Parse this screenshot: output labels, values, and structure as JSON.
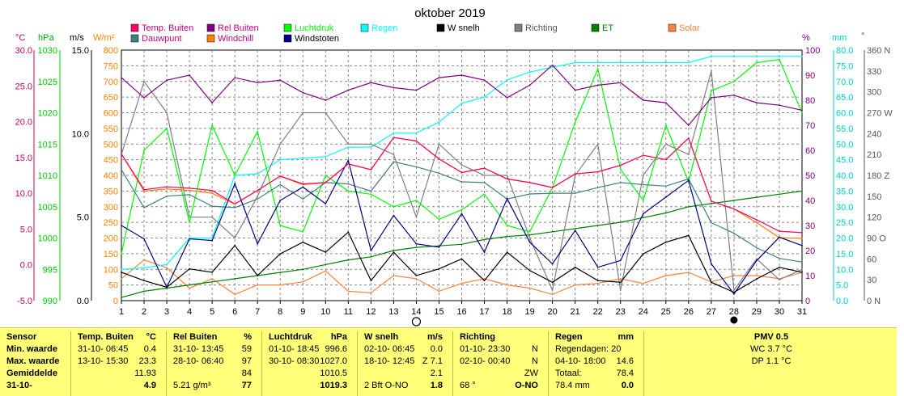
{
  "title": "oktober 2019",
  "legend": [
    {
      "label": "Temp. Buiten",
      "color": "#ff0066"
    },
    {
      "label": "Rel Buiten",
      "color": "#800080"
    },
    {
      "label": "Luchtdruk",
      "color": "#00ff00"
    },
    {
      "label": "Regen",
      "color": "#00ffff"
    },
    {
      "label": "W snelh",
      "color": "#000000"
    },
    {
      "label": "Richting",
      "color": "#808080"
    },
    {
      "label": "ET",
      "color": "#008000"
    },
    {
      "label": "Solar",
      "color": "#ff8040"
    },
    {
      "label": "Dauwpunt",
      "color": "#408080"
    },
    {
      "label": "Windchill",
      "color": "#ff8000"
    },
    {
      "label": "Windstoten",
      "color": "#000080"
    }
  ],
  "axis_units": {
    "temp": "°C",
    "hpa": "hPa",
    "ms": "m/s",
    "wm2": "W/m²",
    "pct": "%",
    "mm": "mm",
    "deg": "°"
  },
  "axis_ticks": {
    "temp": [
      "30.0",
      "25.0",
      "20.0",
      "15.0",
      "10.0",
      "5.0",
      "0.0",
      "-5.0"
    ],
    "hpa": [
      "1030",
      "1025",
      "1020",
      "1015",
      "1010",
      "1005",
      "1000",
      "995",
      "990"
    ],
    "ms": [
      "15.0",
      "10.0",
      "5.0",
      "0.0"
    ],
    "wm2": [
      "800",
      "750",
      "700",
      "650",
      "600",
      "550",
      "500",
      "450",
      "400",
      "350",
      "300",
      "250",
      "200",
      "150",
      "100",
      "50",
      "0"
    ],
    "pct": [
      "100",
      "90",
      "80",
      "70",
      "60",
      "50",
      "40",
      "30",
      "20",
      "10",
      "0"
    ],
    "mm": [
      "80.0",
      "75.0",
      "70.0",
      "65.0",
      "60.0",
      "55.0",
      "50.0",
      "45.0",
      "40.0",
      "35.0",
      "30.0",
      "25.0",
      "20.0",
      "15.0",
      "10.0",
      "5.0",
      "0.0"
    ],
    "dir": [
      "360 N",
      "330",
      "300",
      "270 W",
      "240",
      "210",
      "180 Z",
      "150",
      "120",
      "90 O",
      "60",
      "30",
      "0 N"
    ]
  },
  "chart_data": {
    "type": "line",
    "title": "oktober 2019",
    "x": [
      1,
      2,
      3,
      4,
      5,
      6,
      7,
      8,
      9,
      10,
      11,
      12,
      13,
      14,
      15,
      16,
      17,
      18,
      19,
      20,
      21,
      22,
      23,
      24,
      25,
      26,
      27,
      28,
      29,
      30,
      31
    ],
    "markers": [
      {
        "x": 14,
        "symbol": "open-circle"
      },
      {
        "x": 28,
        "symbol": "filled-circle"
      }
    ],
    "grid": true,
    "series": [
      {
        "name": "Temp. Buiten",
        "axis": "temp",
        "color": "#ff0066",
        "values": [
          15.5,
          10.5,
          10.9,
          10.7,
          10.4,
          8.5,
          10.4,
          12.4,
          11.3,
          11.5,
          14.1,
          13.3,
          17.8,
          17.3,
          14.8,
          12.9,
          13.5,
          12.0,
          11.5,
          10.8,
          12.7,
          13.0,
          13.9,
          15.3,
          14.7,
          17.7,
          8.9,
          7.8,
          6.3,
          4.7,
          4.5
        ]
      },
      {
        "name": "Dauwpunt",
        "axis": "temp",
        "color": "#408080",
        "values": [
          13.3,
          8.0,
          9.6,
          9.8,
          8.2,
          8.0,
          9.2,
          11.2,
          9.2,
          11.5,
          11.3,
          10.3,
          14.4,
          13.7,
          12.8,
          11.6,
          11.5,
          9.2,
          9.9,
          10.0,
          10.0,
          10.8,
          11.5,
          11.2,
          11.0,
          12.0,
          5.9,
          4.4,
          2.4,
          0.9,
          0.4
        ]
      },
      {
        "name": "Windchill",
        "axis": "temp",
        "color": "#ff8000",
        "values": [
          15.5,
          10.3,
          10.6,
          10.4,
          10.0,
          8.5,
          10.4,
          12.4,
          11.2,
          11.5,
          14.1,
          13.3,
          17.8,
          17.3,
          14.8,
          12.9,
          13.5,
          12.0,
          11.5,
          10.8,
          12.7,
          13.0,
          13.9,
          15.3,
          14.7,
          17.7,
          8.9,
          7.8,
          5.9,
          3.8,
          3.7
        ]
      },
      {
        "name": "Rel Buiten",
        "axis": "pct",
        "color": "#800080",
        "values": [
          89,
          81,
          88,
          90,
          79,
          89,
          87,
          88,
          83,
          80,
          84,
          87,
          85,
          84,
          89,
          90,
          88,
          81,
          86,
          94,
          84,
          86,
          87,
          80,
          79,
          70,
          81,
          82,
          79,
          78,
          76
        ]
      },
      {
        "name": "Luchtdruk",
        "axis": "hpa",
        "color": "#00ff00",
        "values": [
          997.5,
          1014.0,
          1017.5,
          1002.5,
          1018.0,
          1010.0,
          1017.0,
          1002.0,
          1001.0,
          1010.0,
          1007.5,
          1007.0,
          1005.0,
          1006.0,
          1003.0,
          1004.5,
          1007.0,
          1002.0,
          1001.0,
          1008.0,
          1018.5,
          1027.0,
          1011.0,
          1006.0,
          1018.0,
          1009.0,
          1023.5,
          1025.0,
          1028.0,
          1028.5,
          1020.0
        ]
      },
      {
        "name": "Regen",
        "axis": "mm",
        "color": "#00ffff",
        "values": [
          10.0,
          10.5,
          11.5,
          20.0,
          20.0,
          40.0,
          40.5,
          45.0,
          45.5,
          46.0,
          49.0,
          49.0,
          53.5,
          53.5,
          57.0,
          63.0,
          65.0,
          70.5,
          73.0,
          74.5,
          76.0,
          76.0,
          76.0,
          76.0,
          76.0,
          76.0,
          78.0,
          78.0,
          78.0,
          78.0,
          78.0
        ]
      },
      {
        "name": "W snelh",
        "axis": "ms",
        "color": "#000000",
        "values": [
          1.7,
          1.2,
          0.8,
          1.9,
          1.7,
          3.3,
          1.5,
          2.8,
          3.5,
          2.9,
          4.1,
          1.2,
          2.9,
          1.5,
          1.9,
          2.5,
          1.2,
          2.9,
          1.8,
          1.1,
          2.0,
          1.2,
          1.1,
          2.8,
          3.5,
          3.9,
          1.1,
          0.5,
          1.3,
          2.0,
          1.7
        ]
      },
      {
        "name": "Windstoten",
        "axis": "ms",
        "color": "#000080",
        "values": [
          4.5,
          3.7,
          0.8,
          3.7,
          3.6,
          7.0,
          3.4,
          6.0,
          6.8,
          5.8,
          8.4,
          3.0,
          5.1,
          3.4,
          3.2,
          5.2,
          2.9,
          6.1,
          3.5,
          2.2,
          4.2,
          2.0,
          2.4,
          5.2,
          6.2,
          7.2,
          2.2,
          0.4,
          2.4,
          3.8,
          3.3
        ]
      },
      {
        "name": "Richting",
        "axis": "dir",
        "color": "#808080",
        "values": [
          210,
          315,
          270,
          120,
          120,
          90,
          150,
          225,
          270,
          270,
          225,
          225,
          210,
          120,
          225,
          195,
          180,
          180,
          90,
          15,
          180,
          225,
          15,
          180,
          225,
          210,
          330,
          15,
          60,
          30,
          45
        ]
      },
      {
        "name": "ET",
        "axis": "mm",
        "color": "#008000",
        "values": [
          1.0,
          3.0,
          4.0,
          5.0,
          6.0,
          7.0,
          8.0,
          9.0,
          10.0,
          11.5,
          13.0,
          14.0,
          16.0,
          17.0,
          17.5,
          18.0,
          19.5,
          20.5,
          21.0,
          22.0,
          23.0,
          24.0,
          25.0,
          26.5,
          28.0,
          30.0,
          31.0,
          32.0,
          33.0,
          34.0,
          35.0
        ]
      },
      {
        "name": "Solar",
        "axis": "wm2",
        "color": "#ff8040",
        "values": [
          70,
          130,
          105,
          40,
          70,
          20,
          50,
          50,
          60,
          95,
          30,
          25,
          80,
          70,
          30,
          55,
          70,
          50,
          40,
          20,
          50,
          55,
          70,
          55,
          80,
          90,
          60,
          80,
          80,
          70,
          90
        ]
      }
    ]
  },
  "stats": {
    "sensor": {
      "header": "Sensor",
      "rows": [
        "Min. waarde",
        "Max. waarde",
        "Gemiddelde",
        "31-10-"
      ]
    },
    "temp": {
      "header": "Temp. Buiten",
      "unit": "°C",
      "rows": [
        [
          "31-10-  06:45",
          "0.4"
        ],
        [
          "13-10-  15:30",
          "23.3"
        ],
        [
          "",
          "11.93"
        ],
        [
          "",
          "4.9"
        ]
      ]
    },
    "rel": {
      "header": "Rel Buiten",
      "unit": "%",
      "rows": [
        [
          "31-10-  13:45",
          "59"
        ],
        [
          "28-10-  06:40",
          "97"
        ],
        [
          "",
          "84"
        ],
        [
          "5.21 g/m³",
          "77"
        ]
      ]
    },
    "druk": {
      "header": "Luchtdruk",
      "unit": "hPa",
      "rows": [
        [
          "01-10-  18:45",
          "996.6"
        ],
        [
          "30-10-  08:30",
          "1027.0"
        ],
        [
          "",
          "1010.5"
        ],
        [
          "",
          "1019.3"
        ]
      ]
    },
    "wind": {
      "header": "W snelh",
      "unit": "m/s",
      "rows": [
        [
          "02-10-  06:45",
          "0.0"
        ],
        [
          "18-10-  12:45",
          "Z 7.1"
        ],
        [
          "",
          "2.1"
        ],
        [
          "2 Bft  O-NO",
          "1.8"
        ]
      ]
    },
    "richting": {
      "header": "Richting",
      "unit": "",
      "rows": [
        [
          "01-10-  23:30",
          "N"
        ],
        [
          "02-10-  00:40",
          "N"
        ],
        [
          "",
          "ZW"
        ],
        [
          "68 °",
          "O-NO"
        ]
      ]
    },
    "regen": {
      "header": "Regen",
      "unit": "mm",
      "rows": [
        [
          "Regendagen: 20",
          ""
        ],
        [
          "04-10-  18:00",
          "14.6"
        ],
        [
          "Totaal:",
          "78.4"
        ],
        [
          "78.4 mm",
          "0.0"
        ]
      ]
    },
    "pmv": {
      "header": "PMV 0.5",
      "wc": "WC 3.7 °C",
      "dp": "DP 1.1 °C"
    }
  }
}
